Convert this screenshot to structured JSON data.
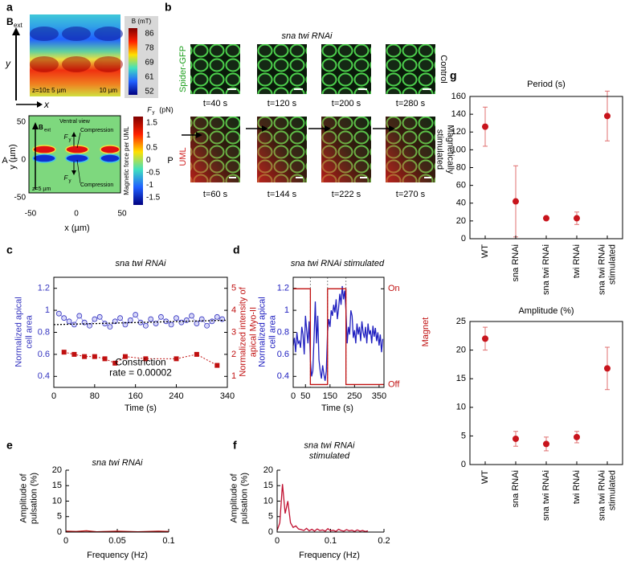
{
  "panels": {
    "a": {
      "letter": "a",
      "b": "B",
      "b_sub": "ext",
      "y_axis": "y",
      "x_axis": "x",
      "depth": "z=10± 5 µm",
      "scale": "10 µm",
      "colorbar_title": "B (mT)",
      "colorbar_ticks": [
        86,
        78,
        69,
        61,
        52
      ],
      "force_map": {
        "view": "Ventral view",
        "b": "B",
        "b_sub": "ext",
        "f_top": "F",
        "f_top_sub": "y",
        "compression_top": "Compression",
        "f_bottom": "F",
        "f_bottom_sub": "y",
        "compression_bottom": "Compression",
        "depth": "z=5 µm",
        "anterior": "A",
        "posterior": "P",
        "ylabel": "y (µm)",
        "yticks": [
          50,
          0,
          -50
        ],
        "xlabel": "x (µm)",
        "xticks": [
          -50,
          0,
          50
        ],
        "colorbar_title": "F",
        "colorbar_title_sub": "y",
        "colorbar_unit": "(pN)",
        "colorbar_ticks": [
          1.5,
          1,
          0.5,
          0,
          -0.5,
          -1,
          -1.5
        ],
        "colorbar_label": "Magnetic force per UML"
      }
    },
    "b": {
      "letter": "b",
      "title": "sna twi RNAi",
      "row1_label": "Spider-GFP",
      "row1_side": "Control",
      "row2_label": "UML",
      "row2_side": [
        "Magnetically",
        "stimulated"
      ],
      "row1_times": [
        "t=40 s",
        "t=120 s",
        "t=200 s",
        "t=280 s"
      ],
      "row2_times": [
        "t=60 s",
        "t=144 s",
        "t=222 s",
        "t=270 s"
      ]
    }
  },
  "chart_data": [
    {
      "panel": "c",
      "type": "line",
      "title": "sna twi RNAi",
      "ylabel": [
        "Normalized apical",
        "cell area"
      ],
      "y2label": [
        "Normalized intensity of",
        "apical Myo-II"
      ],
      "xlabel": "Time (s)",
      "annotation": [
        "Constriction",
        "rate = 0.00002"
      ],
      "xlim": [
        0,
        340
      ],
      "xticks": [
        0,
        80,
        160,
        240,
        340
      ],
      "ylim": [
        0.3,
        1.3
      ],
      "yticks": [
        0.4,
        0.6,
        0.8,
        1,
        1.2
      ],
      "y2lim": [
        0.5,
        5.5
      ],
      "y2ticks": [
        1,
        2,
        3,
        4,
        5
      ],
      "frame": true,
      "series": [
        {
          "color": "#3535c0",
          "marker": "circle",
          "x": [
            10,
            20,
            30,
            40,
            50,
            60,
            70,
            80,
            90,
            100,
            110,
            120,
            130,
            140,
            150,
            160,
            170,
            180,
            190,
            200,
            210,
            220,
            230,
            240,
            250,
            260,
            270,
            280,
            290,
            300,
            310,
            320,
            330
          ],
          "values": [
            0.97,
            0.93,
            0.9,
            0.87,
            0.95,
            0.89,
            0.86,
            0.92,
            0.94,
            0.88,
            0.85,
            0.9,
            0.93,
            0.87,
            0.91,
            0.96,
            0.89,
            0.86,
            0.92,
            0.88,
            0.94,
            0.9,
            0.87,
            0.93,
            0.89,
            0.91,
            0.95,
            0.88,
            0.92,
            0.86,
            0.9,
            0.94,
            0.92
          ]
        },
        {
          "color": "#c01010",
          "marker": "square",
          "axis": "y2",
          "x": [
            20,
            40,
            60,
            80,
            100,
            120,
            140,
            180,
            240,
            280,
            320
          ],
          "values": [
            2.1,
            2.0,
            1.9,
            1.9,
            1.8,
            1.6,
            1.9,
            1.8,
            1.8,
            2.0,
            1.5
          ]
        },
        {
          "color": "#000000",
          "dash": true,
          "x": [
            0,
            340
          ],
          "values": [
            0.87,
            0.91
          ]
        }
      ]
    },
    {
      "panel": "d",
      "type": "line",
      "title": "sna twi RNAi stimulated",
      "ylabel": [
        "Normalized apical",
        "cell area"
      ],
      "y2label": "Magnet",
      "xlabel": "Time (s)",
      "xlim": [
        0,
        370
      ],
      "xticks": [
        0,
        50,
        150,
        250,
        350
      ],
      "ylim": [
        0.3,
        1.3
      ],
      "yticks": [
        0.4,
        0.6,
        0.8,
        1,
        1.2
      ],
      "y2lim": [
        -0.03,
        1.12
      ],
      "y2ticks": [
        {
          "value": 1,
          "label": "On"
        },
        {
          "value": 0,
          "label": "Off"
        }
      ],
      "vlines": [
        70,
        140,
        215
      ],
      "frame": true,
      "series": [
        {
          "color": "#2020c0",
          "x": [
            0,
            5,
            10,
            15,
            20,
            25,
            30,
            35,
            40,
            45,
            50,
            55,
            60,
            65,
            70,
            75,
            80,
            85,
            90,
            95,
            100,
            105,
            110,
            115,
            120,
            125,
            130,
            135,
            140,
            145,
            150,
            155,
            160,
            165,
            170,
            175,
            180,
            185,
            190,
            195,
            200,
            205,
            210,
            215,
            220,
            225,
            230,
            235,
            240,
            245,
            250,
            255,
            260,
            265,
            270,
            275,
            280,
            285,
            290,
            295,
            300,
            305,
            310,
            315,
            320,
            325,
            330,
            335,
            340,
            345,
            350,
            355,
            360,
            365
          ],
          "values": [
            0.68,
            0.75,
            0.62,
            0.8,
            0.7,
            0.72,
            0.66,
            0.85,
            0.78,
            0.6,
            0.95,
            0.82,
            0.7,
            0.9,
            0.55,
            0.4,
            0.45,
            0.75,
            1.08,
            0.7,
            0.95,
            0.55,
            0.45,
            0.38,
            0.5,
            0.42,
            0.36,
            0.45,
            0.8,
            0.92,
            0.85,
            1.0,
            0.95,
            1.05,
            0.98,
            1.1,
            0.92,
            1.02,
            1.15,
            1.05,
            1.22,
            1.1,
            1.18,
            1.0,
            0.7,
            0.85,
            0.78,
            1.0,
            0.95,
            0.75,
            0.82,
            0.7,
            0.88,
            0.78,
            0.85,
            0.72,
            0.9,
            0.8,
            0.75,
            0.85,
            0.7,
            0.88,
            0.78,
            0.82,
            0.7,
            0.86,
            0.76,
            0.84,
            0.72,
            0.8,
            0.68,
            0.78,
            0.62,
            0.74
          ]
        },
        {
          "color": "#c01010",
          "axis": "y2",
          "x": [
            0,
            70,
            70,
            140,
            140,
            215,
            215,
            370
          ],
          "values": [
            1,
            1,
            0,
            0,
            1,
            1,
            0,
            0
          ]
        }
      ]
    },
    {
      "panel": "e",
      "type": "line",
      "title": "sna twi RNAi",
      "ylabel": [
        "Amplitude of",
        "pulsation (%)"
      ],
      "xlabel": "Frequency (Hz)",
      "xlim": [
        0,
        0.1
      ],
      "xticks": [
        0,
        0.05,
        0.1
      ],
      "ylim": [
        0,
        20
      ],
      "yticks": [
        0,
        5,
        10,
        15,
        20
      ],
      "series": [
        {
          "color": "#c01010",
          "x": [
            0,
            0.01,
            0.02,
            0.03,
            0.04,
            0.05,
            0.06,
            0.07,
            0.08,
            0.09,
            0.1
          ],
          "values": [
            0.3,
            0.2,
            0.4,
            0.1,
            0.2,
            0.3,
            0.2,
            0.1,
            0.2,
            0.3,
            0.2
          ]
        }
      ]
    },
    {
      "panel": "f",
      "type": "line",
      "title": [
        "sna twi RNAi",
        "stimulated"
      ],
      "ylabel": [
        "Amplitude of",
        "pulsation (%)"
      ],
      "xlabel": "Frequency (Hz)",
      "xlim": [
        0,
        0.2
      ],
      "xticks": [
        0,
        0.1,
        0.2
      ],
      "ylim": [
        0,
        20
      ],
      "yticks": [
        0,
        5,
        10,
        15,
        20
      ],
      "series": [
        {
          "color": "#c01030",
          "x": [
            0,
            0.005,
            0.01,
            0.015,
            0.02,
            0.025,
            0.03,
            0.035,
            0.04,
            0.045,
            0.05,
            0.055,
            0.06,
            0.065,
            0.07,
            0.075,
            0.08,
            0.085,
            0.09,
            0.095,
            0.1,
            0.105,
            0.11,
            0.115,
            0.12,
            0.125,
            0.13,
            0.135,
            0.14,
            0.145,
            0.15,
            0.155,
            0.16,
            0.165,
            0.17
          ],
          "values": [
            0.5,
            3,
            15.5,
            6,
            10,
            3,
            1.5,
            2,
            1,
            0.8,
            0.5,
            1.2,
            0.4,
            0.9,
            0.3,
            1,
            0.5,
            0.7,
            0.3,
            1.1,
            0.4,
            0.6,
            0.2,
            0.9,
            0.5,
            0.3,
            0.8,
            0.4,
            0.6,
            0.2,
            0.7,
            0.3,
            0.5,
            0.2,
            0.4
          ]
        }
      ]
    },
    {
      "panel": "g",
      "type": "errorbar",
      "title": "Period (s)",
      "categories": [
        "WT",
        "sna RNAi",
        "sna twi RNAi",
        "twi RNAi",
        [
          "sna twi RNAi",
          "stimulated"
        ]
      ],
      "values": [
        126,
        42,
        23,
        23,
        138
      ],
      "errors": [
        22,
        40,
        1,
        7,
        28
      ],
      "color": "#c8141c",
      "ylim": [
        0,
        160
      ],
      "yticks": [
        0,
        20,
        40,
        60,
        80,
        100,
        120,
        140,
        160
      ],
      "frame": true
    },
    {
      "type": "errorbar",
      "title": "Amplitude (%)",
      "categories": [
        "WT",
        "sna RNAi",
        "sna twi RNAi",
        "twi RNAi",
        [
          "sna twi RNAi",
          "stimulated"
        ]
      ],
      "values": [
        22,
        4.5,
        3.6,
        4.8,
        16.8
      ],
      "errors": [
        2,
        1.3,
        1.2,
        1,
        3.7
      ],
      "color": "#c8141c",
      "ylim": [
        0,
        25
      ],
      "yticks": [
        0,
        5,
        10,
        15,
        20,
        25
      ],
      "frame": true
    }
  ]
}
